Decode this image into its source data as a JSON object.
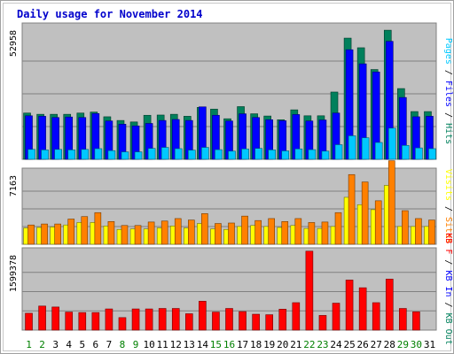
{
  "chart_data": {
    "type": "bar",
    "title": "Daily usage for November 2014",
    "categories": [
      "1",
      "2",
      "3",
      "4",
      "5",
      "6",
      "7",
      "8",
      "9",
      "10",
      "11",
      "12",
      "13",
      "14",
      "15",
      "16",
      "17",
      "18",
      "19",
      "20",
      "21",
      "22",
      "23",
      "24",
      "25",
      "26",
      "27",
      "28",
      "29",
      "30",
      "31"
    ],
    "weekend_days": [
      "1",
      "2",
      "8",
      "9",
      "15",
      "16",
      "22",
      "23",
      "29",
      "30"
    ],
    "colors": {
      "title": "#0000cc",
      "hits": "#00805c",
      "files": "#0000ff",
      "pages": "#00c8ff",
      "visits": "#ffff00",
      "sites": "#ff8000",
      "kb_in": "#0000ff",
      "kb_f": "#ff0000",
      "kb_out": "#00805c",
      "weekday": "#000000",
      "weekend": "#008000",
      "plot_bg": "#c0c0c0",
      "frame_bg": "#ffffff"
    },
    "panels": [
      {
        "id": "hits-files-pages",
        "ymax_label": "52958",
        "ymax": 52958,
        "ylabel_parts": [
          "Pages",
          " / ",
          "Files",
          " / ",
          "Hits"
        ],
        "ylabel_colors": [
          "#00c8ff",
          "#000000",
          "#0000ff",
          "#000000",
          "#00805c"
        ],
        "series": [
          {
            "name": "Hits",
            "color": "#00805c",
            "values": [
              18700,
              18200,
              18200,
              18200,
              18700,
              19100,
              17200,
              15700,
              15100,
              17800,
              17900,
              18200,
              17400,
              21000,
              20300,
              16400,
              21300,
              18400,
              17500,
              16000,
              20000,
              17600,
              17600,
              27200,
              49000,
              45100,
              36300,
              52200,
              28600,
              19300,
              19300
            ]
          },
          {
            "name": "Files",
            "color": "#0000ff",
            "values": [
              17600,
              17400,
              16900,
              17100,
              16900,
              18500,
              15500,
              14200,
              13500,
              14500,
              15700,
              16100,
              15700,
              21200,
              17800,
              15500,
              18400,
              16900,
              16000,
              15600,
              18100,
              15500,
              15900,
              18700,
              44300,
              38600,
              35300,
              47700,
              25000,
              17200,
              17400
            ]
          },
          {
            "name": "Pages",
            "color": "#00c8ff",
            "values": [
              4000,
              3800,
              4000,
              3800,
              4000,
              4300,
              3500,
              3000,
              3000,
              4400,
              4800,
              4300,
              3700,
              4800,
              3900,
              3300,
              4200,
              4400,
              3800,
              3400,
              4200,
              3900,
              3300,
              5900,
              9500,
              8700,
              6800,
              12600,
              5600,
              4600,
              4300
            ]
          }
        ]
      },
      {
        "id": "visits-sites",
        "ymax_label": "7163",
        "ymax": 7163,
        "ylabel_parts": [
          "Visits",
          " / ",
          "Sites"
        ],
        "ylabel_colors": [
          "#ffff00",
          "#000000",
          "#ff8000"
        ],
        "series": [
          {
            "name": "Visits",
            "color": "#ffff00",
            "values": [
              1650,
              1700,
              1750,
              1950,
              2200,
              2200,
              1850,
              1500,
              1550,
              1550,
              1650,
              1850,
              1650,
              2100,
              1550,
              1500,
              1800,
              1900,
              1800,
              1700,
              1900,
              1600,
              1600,
              1800,
              4750,
              4000,
              3500,
              5950,
              1800,
              1800,
              1800
            ]
          },
          {
            "name": "Sites",
            "color": "#ff8000",
            "values": [
              1950,
              2050,
              2050,
              2550,
              2800,
              3200,
              2300,
              1900,
              1900,
              2250,
              2350,
              2600,
              2450,
              3100,
              2100,
              2150,
              2850,
              2400,
              2600,
              2300,
              2600,
              2200,
              2250,
              3200,
              7050,
              6300,
              4400,
              8450,
              3400,
              2600,
              2450
            ]
          }
        ]
      },
      {
        "id": "kbin-kbout",
        "ymax_label": "1599378",
        "ymax": 1599378,
        "ylabel_parts": [
          "KB F",
          " / ",
          "KB In",
          " / ",
          "KB Out"
        ],
        "ylabel_colors": [
          "#ff0000",
          "#000000",
          "#0000ff",
          "#000000",
          "#00805c"
        ],
        "series": [
          {
            "name": "KB F",
            "color": "#ff0000",
            "values": [
              350000,
              500000,
              480000,
              375000,
              365000,
              365000,
              440000,
              260000,
              440000,
              440000,
              450000,
              450000,
              340000,
              600000,
              375000,
              450000,
              385000,
              330000,
              320000,
              435000,
              570000,
              1640000,
              305000,
              560000,
              1040000,
              880000,
              570000,
              1060000,
              450000,
              380000,
              0
            ]
          }
        ]
      }
    ]
  }
}
